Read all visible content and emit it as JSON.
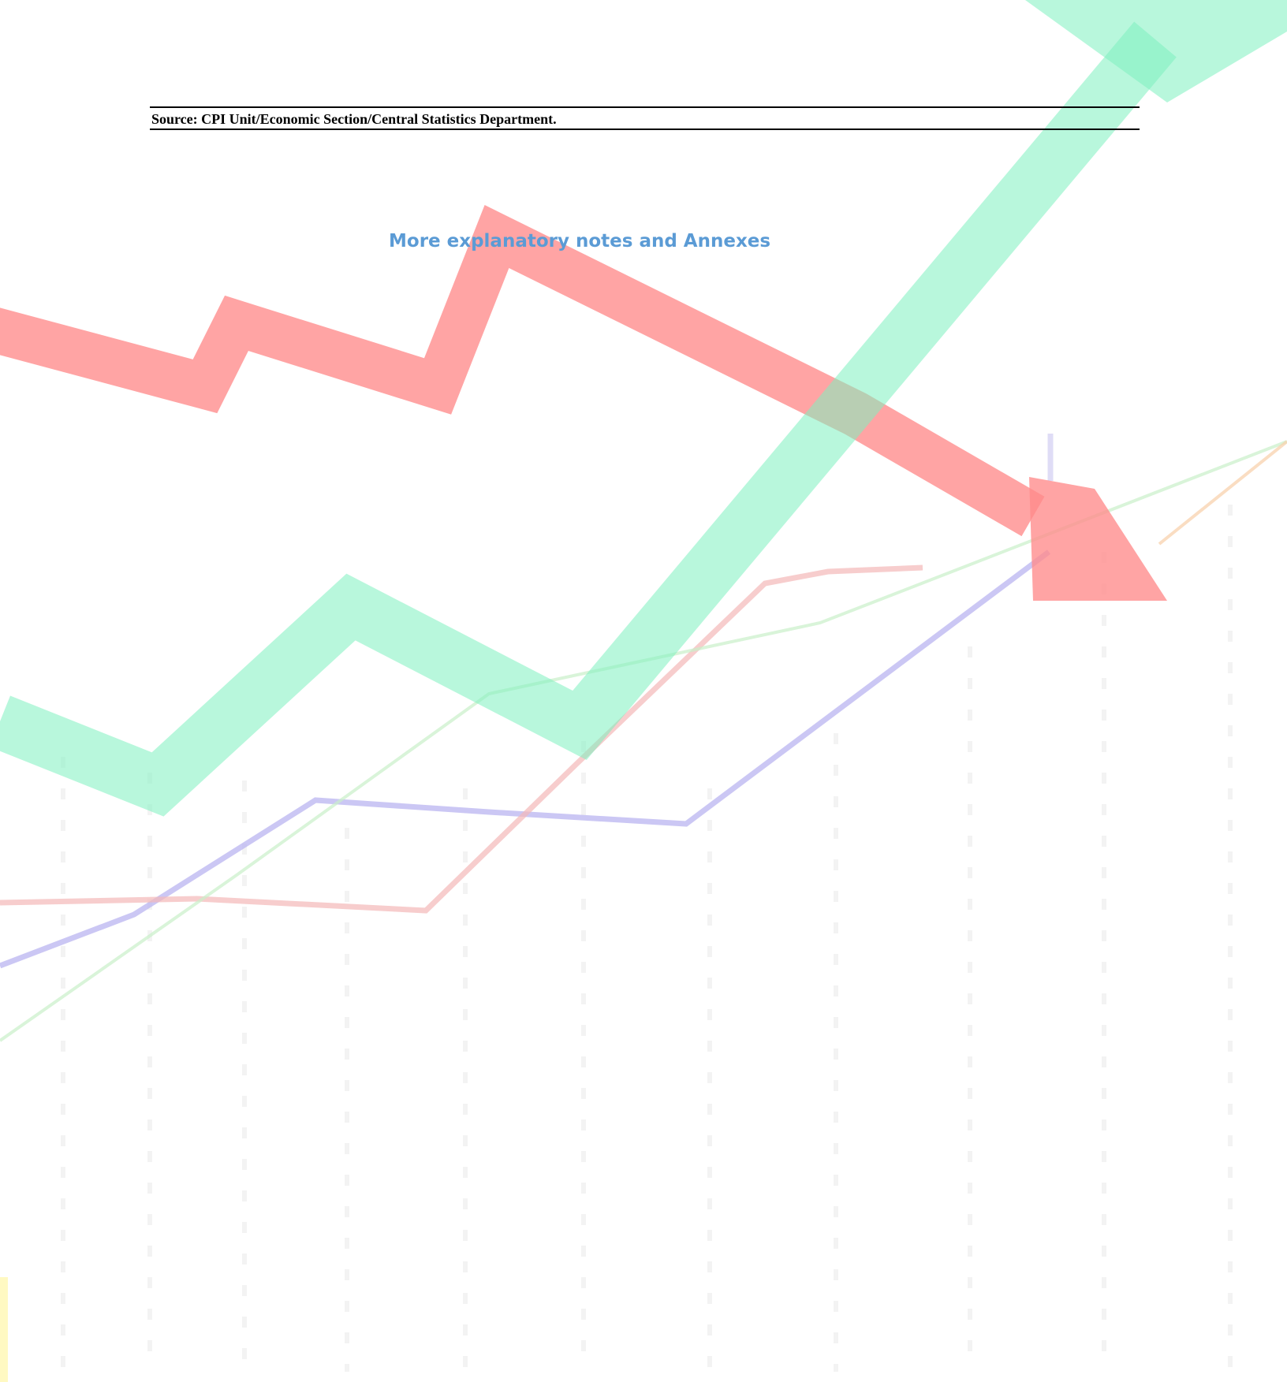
{
  "source": {
    "text": "Source: CPI Unit/Economic Section/Central Statistics Department."
  },
  "annexes_link": {
    "text": "More explanatory notes and Annexes"
  },
  "colors": {
    "link": "#5b9bd5",
    "down_arrow": "#ff8a8a",
    "up_arrow": "#7df0c0",
    "thin_line_purple": "#b9b4f0",
    "thin_line_pink": "#f4b8b8",
    "thin_line_green": "#c9f0c9",
    "thin_line_orange": "#f8cfa8"
  },
  "background_art": {
    "icon": "trend-arrows-watermark"
  }
}
